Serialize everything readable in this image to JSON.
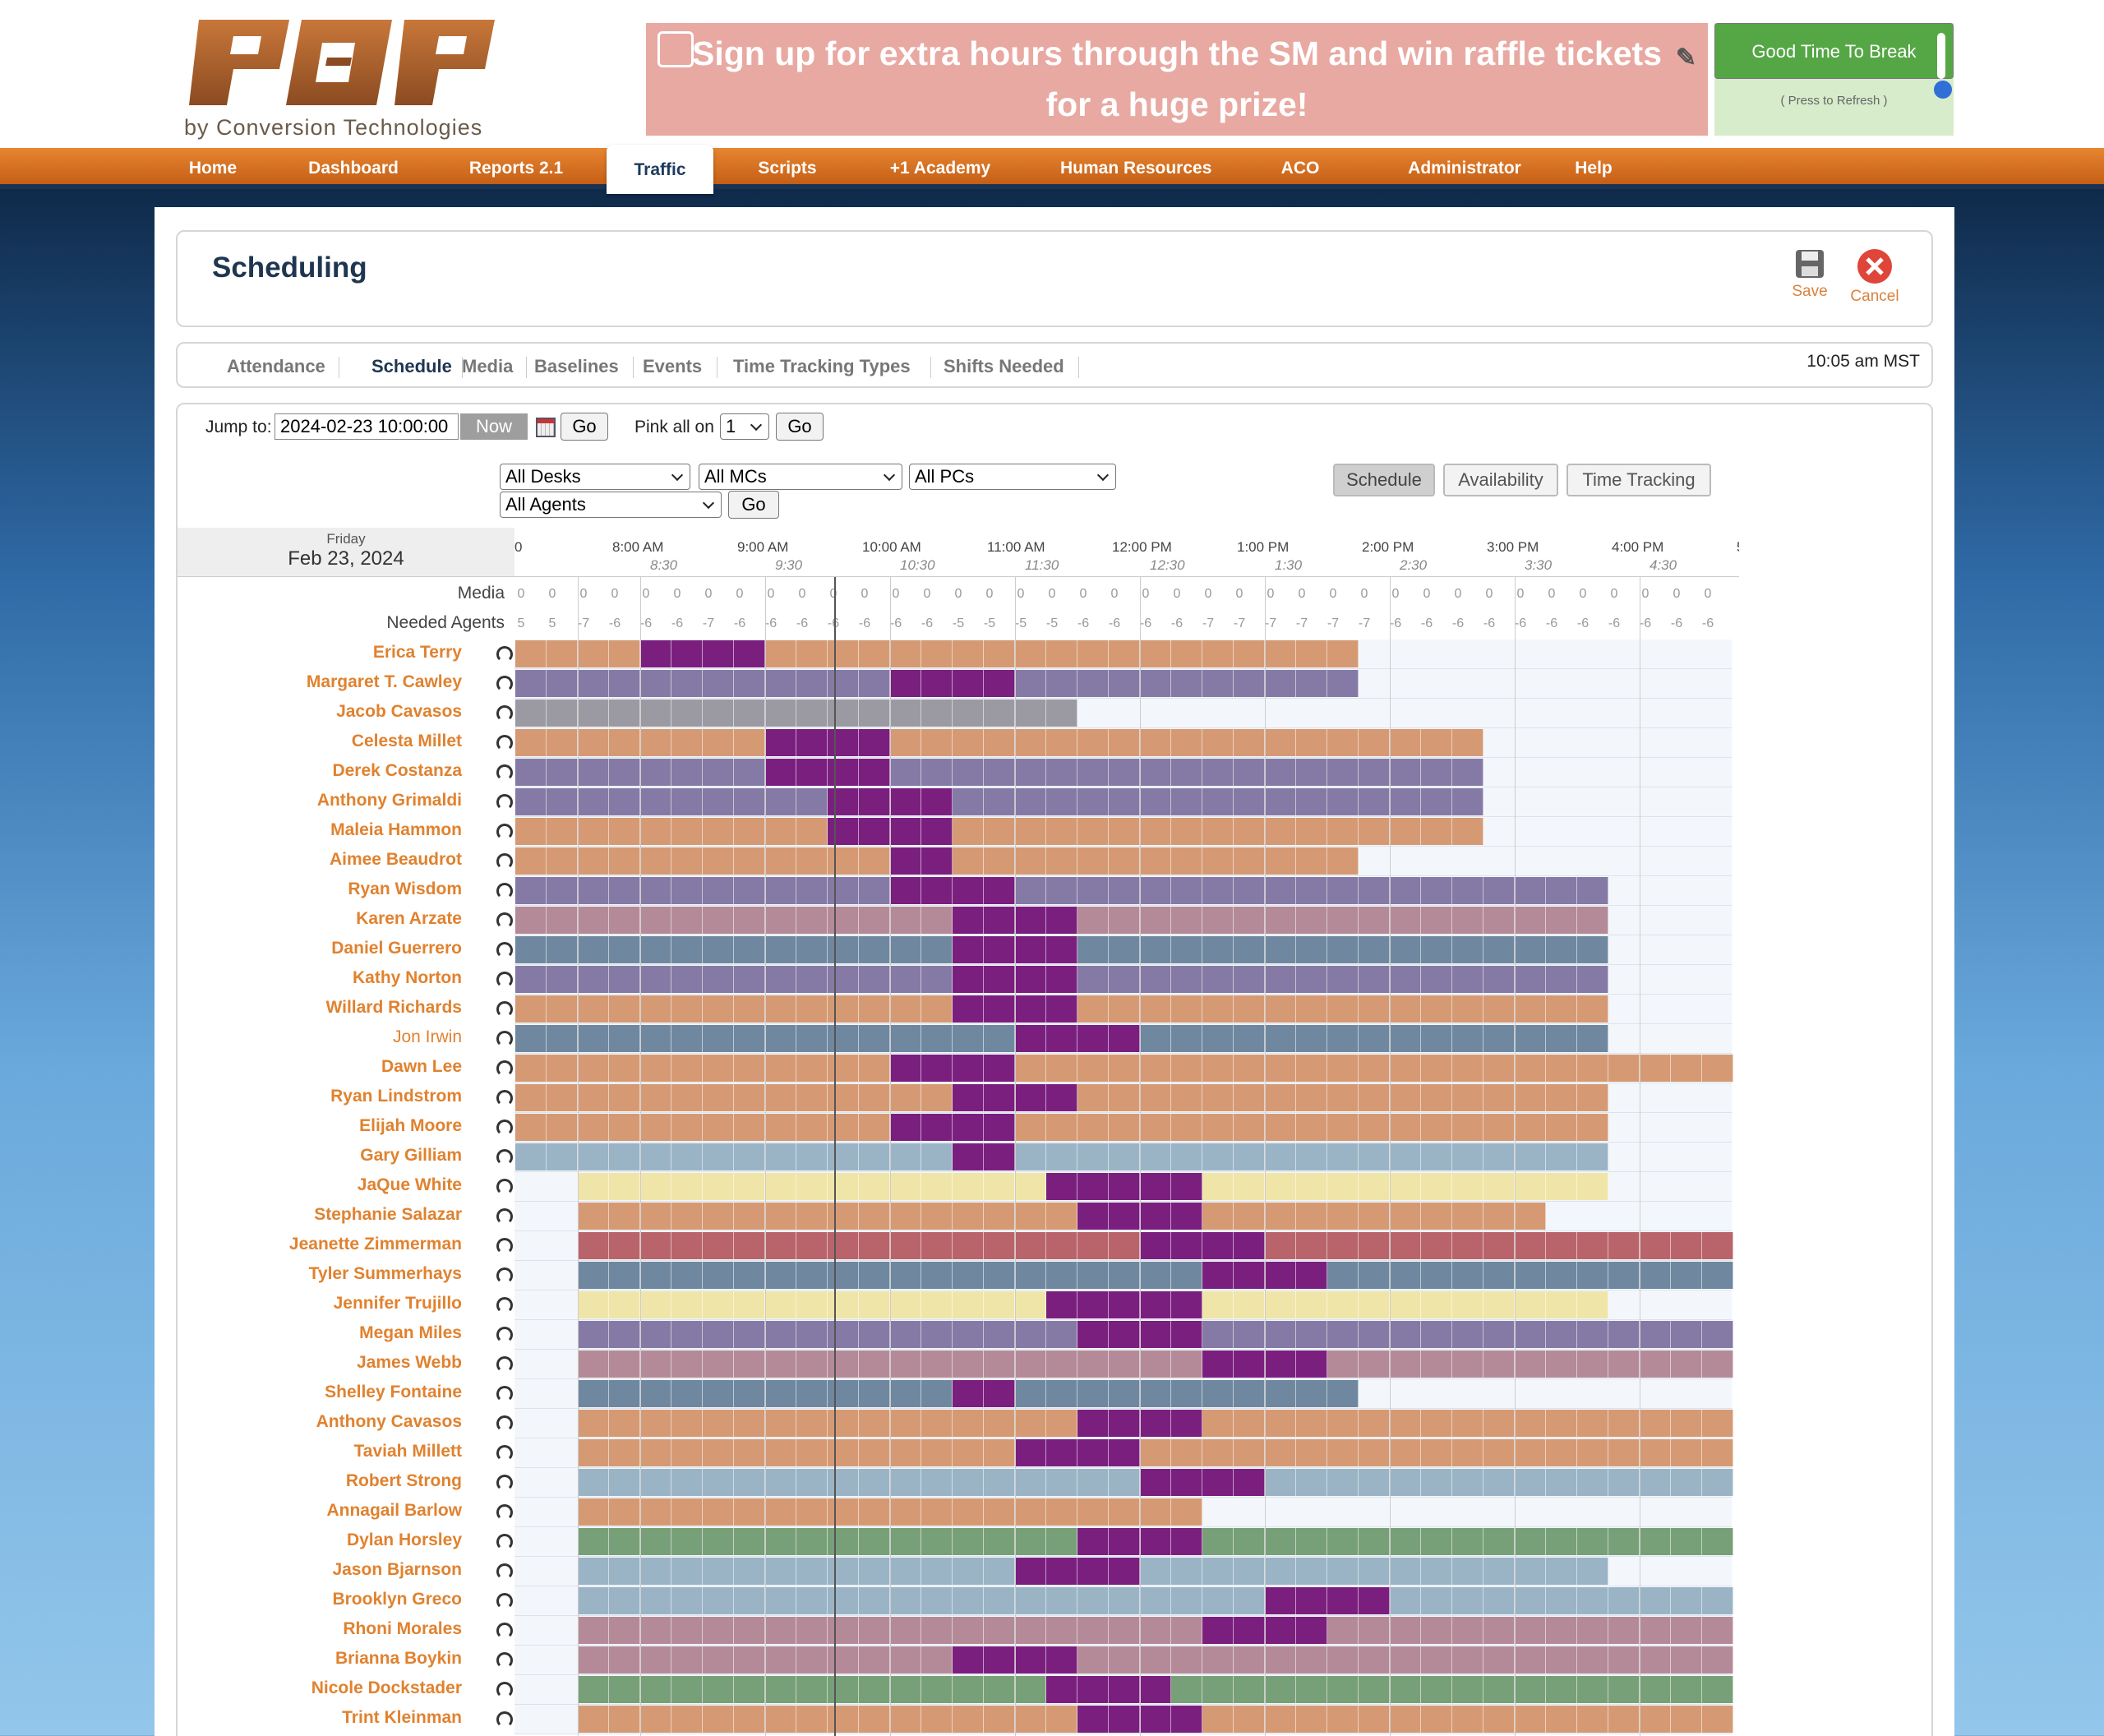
{
  "logo": {
    "sub": "by Conversion Technologies"
  },
  "banner": {
    "text": "Sign up for extra hours through the SM and win raffle tickets for a huge prize!"
  },
  "break_box": {
    "label": "Good Time To Break",
    "refresh": "( Press to Refresh )"
  },
  "nav": [
    "Home",
    "Dashboard",
    "Reports 2.1",
    "Traffic",
    "Scripts",
    "+1 Academy",
    "Human Resources",
    "ACO",
    "Administrator",
    "Help"
  ],
  "nav_active": "Traffic",
  "page": {
    "title": "Scheduling",
    "save": "Save",
    "cancel": "Cancel",
    "time": "10:05 am MST"
  },
  "tabs": [
    "Attendance",
    "Schedule",
    "Media",
    "Baselines",
    "Events",
    "Time Tracking Types",
    "Shifts Needed"
  ],
  "tabs_active": "Schedule",
  "controls": {
    "jump_label": "Jump to:",
    "jump_value": "2024-02-23 10:00:00",
    "now": "Now",
    "go": "Go",
    "pink_label": "Pink all on",
    "pink_value": "1",
    "desks": "All Desks",
    "mcs": "All MCs",
    "pcs": "All PCs",
    "agents": "All Agents"
  },
  "views": [
    "Schedule",
    "Availability",
    "Time Tracking"
  ],
  "grid": {
    "day": "Friday",
    "date": "Feb 23, 2024",
    "media_label": "Media",
    "needed_label": "Needed Agents",
    "hour_ticks": [
      "0",
      "8:00 AM",
      "9:00 AM",
      "10:00 AM",
      "11:00 AM",
      "12:00 PM",
      "1:00 PM",
      "2:00 PM",
      "3:00 PM",
      "4:00 PM",
      "5:0"
    ],
    "half_ticks": [
      "8:30",
      "9:30",
      "10:30",
      "11:30",
      "12:30",
      "1:30",
      "2:30",
      "3:30",
      "4:30"
    ],
    "media": [
      0,
      0,
      0,
      0,
      0,
      0,
      0,
      0,
      0,
      0,
      0,
      0,
      0,
      0,
      0,
      0,
      0,
      0,
      0,
      0,
      0,
      0,
      0,
      0,
      0,
      0,
      0,
      0,
      0,
      0,
      0,
      0,
      0,
      0,
      0,
      0,
      0,
      0,
      0
    ],
    "needed": [
      5,
      5,
      -7,
      -6,
      -6,
      -6,
      -7,
      -6,
      -6,
      -6,
      -6,
      -6,
      -6,
      -6,
      -5,
      -5,
      -5,
      -5,
      -6,
      -6,
      -6,
      -6,
      -7,
      -7,
      -7,
      -7,
      -7,
      -7,
      -6,
      -6,
      -6,
      -6,
      -6,
      -6,
      -6,
      -6,
      -6,
      -6,
      -6
    ],
    "agents": [
      {
        "name": "Erica Terry",
        "color": "#d59a74",
        "start": 0,
        "end": 27,
        "breaks": [
          [
            4,
            6
          ],
          [
            6,
            8
          ]
        ]
      },
      {
        "name": "Margaret T. Cawley",
        "color": "#857aa5",
        "start": 0,
        "end": 27,
        "breaks": [
          [
            12,
            14
          ],
          [
            14,
            16
          ]
        ]
      },
      {
        "name": "Jacob Cavasos",
        "color": "#9b9aa3",
        "start": 0,
        "end": 18,
        "breaks": []
      },
      {
        "name": "Celesta Millet",
        "color": "#d59a74",
        "start": 0,
        "end": 31,
        "breaks": [
          [
            8,
            10
          ],
          [
            10,
            12
          ]
        ]
      },
      {
        "name": "Derek Costanza",
        "color": "#857aa5",
        "start": 0,
        "end": 31,
        "breaks": [
          [
            8,
            10
          ],
          [
            10,
            12
          ]
        ]
      },
      {
        "name": "Anthony Grimaldi",
        "color": "#857aa5",
        "start": 0,
        "end": 31,
        "breaks": [
          [
            10,
            14
          ]
        ]
      },
      {
        "name": "Maleia Hammon",
        "color": "#d59a74",
        "start": 0,
        "end": 31,
        "breaks": [
          [
            10,
            14
          ]
        ]
      },
      {
        "name": "Aimee Beaudrot",
        "color": "#d59a74",
        "start": 0,
        "end": 27,
        "breaks": [
          [
            12,
            14
          ]
        ]
      },
      {
        "name": "Ryan Wisdom",
        "color": "#857aa5",
        "start": 0,
        "end": 35,
        "breaks": [
          [
            12,
            14
          ],
          [
            14,
            16
          ]
        ]
      },
      {
        "name": "Karen Arzate",
        "color": "#b58a98",
        "start": 0,
        "end": 35,
        "breaks": [
          [
            14,
            18
          ]
        ]
      },
      {
        "name": "Daniel Guerrero",
        "color": "#6f88a0",
        "start": 0,
        "end": 35,
        "breaks": [
          [
            14,
            18
          ]
        ]
      },
      {
        "name": "Kathy Norton",
        "color": "#857aa5",
        "start": 0,
        "end": 35,
        "breaks": [
          [
            14,
            18
          ]
        ]
      },
      {
        "name": "Willard Richards",
        "color": "#d59a74",
        "start": 0,
        "end": 35,
        "breaks": [
          [
            14,
            18
          ]
        ]
      },
      {
        "name": "Jon Irwin",
        "color": "#6f88a0",
        "start": 0,
        "end": 35,
        "breaks": [
          [
            16,
            18
          ],
          [
            18,
            20
          ]
        ],
        "plain": true
      },
      {
        "name": "Dawn Lee",
        "color": "#d59a74",
        "start": 0,
        "end": 39,
        "breaks": [
          [
            12,
            14
          ],
          [
            14,
            16
          ]
        ]
      },
      {
        "name": "Ryan Lindstrom",
        "color": "#d59a74",
        "start": 0,
        "end": 35,
        "breaks": [
          [
            14,
            18
          ]
        ]
      },
      {
        "name": "Elijah Moore",
        "color": "#d59a74",
        "start": 0,
        "end": 35,
        "breaks": [
          [
            12,
            14
          ],
          [
            14,
            16
          ]
        ]
      },
      {
        "name": "Gary Gilliam",
        "color": "#9ab4c6",
        "start": 0,
        "end": 35,
        "breaks": [
          [
            14,
            16
          ]
        ]
      },
      {
        "name": "JaQue White",
        "color": "#f0e5a8",
        "start": 2,
        "end": 35,
        "breaks": [
          [
            17,
            18
          ],
          [
            18,
            22
          ]
        ]
      },
      {
        "name": "Stephanie Salazar",
        "color": "#d59a74",
        "start": 2,
        "end": 33,
        "breaks": [
          [
            18,
            22
          ]
        ]
      },
      {
        "name": "Jeanette Zimmerman",
        "color": "#b9646a",
        "start": 2,
        "end": 39,
        "breaks": [
          [
            20,
            22
          ],
          [
            22,
            24
          ]
        ]
      },
      {
        "name": "Tyler Summerhays",
        "color": "#6f88a0",
        "start": 2,
        "end": 39,
        "breaks": [
          [
            22,
            26
          ]
        ]
      },
      {
        "name": "Jennifer Trujillo",
        "color": "#f0e5a8",
        "start": 2,
        "end": 35,
        "breaks": [
          [
            17,
            18
          ],
          [
            18,
            22
          ]
        ]
      },
      {
        "name": "Megan Miles",
        "color": "#857aa5",
        "start": 2,
        "end": 39,
        "breaks": [
          [
            18,
            22
          ]
        ]
      },
      {
        "name": "James Webb",
        "color": "#b58a98",
        "start": 2,
        "end": 39,
        "breaks": [
          [
            22,
            26
          ]
        ]
      },
      {
        "name": "Shelley Fontaine",
        "color": "#6f88a0",
        "start": 2,
        "end": 27,
        "breaks": [
          [
            14,
            16
          ]
        ]
      },
      {
        "name": "Anthony Cavasos",
        "color": "#d59a74",
        "start": 2,
        "end": 39,
        "breaks": [
          [
            18,
            22
          ]
        ]
      },
      {
        "name": "Taviah Millett",
        "color": "#d59a74",
        "start": 2,
        "end": 39,
        "breaks": [
          [
            16,
            18
          ],
          [
            18,
            20
          ]
        ]
      },
      {
        "name": "Robert Strong",
        "color": "#9ab4c6",
        "start": 2,
        "end": 39,
        "breaks": [
          [
            20,
            22
          ],
          [
            22,
            24
          ]
        ]
      },
      {
        "name": "Annagail Barlow",
        "color": "#d59a74",
        "start": 2,
        "end": 22,
        "breaks": []
      },
      {
        "name": "Dylan Horsley",
        "color": "#78a078",
        "start": 2,
        "end": 39,
        "breaks": [
          [
            18,
            22
          ]
        ]
      },
      {
        "name": "Jason Bjarnson",
        "color": "#9ab4c6",
        "start": 2,
        "end": 35,
        "breaks": [
          [
            16,
            18
          ],
          [
            18,
            20
          ]
        ]
      },
      {
        "name": "Brooklyn Greco",
        "color": "#9ab4c6",
        "start": 2,
        "end": 39,
        "breaks": [
          [
            24,
            26
          ],
          [
            26,
            28
          ]
        ]
      },
      {
        "name": "Rhoni Morales",
        "color": "#b58a98",
        "start": 2,
        "end": 39,
        "breaks": [
          [
            22,
            26
          ]
        ]
      },
      {
        "name": "Brianna Boykin",
        "color": "#b58a98",
        "start": 2,
        "end": 39,
        "breaks": [
          [
            14,
            18
          ]
        ]
      },
      {
        "name": "Nicole Dockstader",
        "color": "#78a078",
        "start": 2,
        "end": 39,
        "breaks": [
          [
            17,
            18
          ],
          [
            18,
            21
          ]
        ]
      },
      {
        "name": "Trint Kleinman",
        "color": "#d59a74",
        "start": 2,
        "end": 39,
        "breaks": [
          [
            18,
            22
          ]
        ]
      }
    ]
  }
}
